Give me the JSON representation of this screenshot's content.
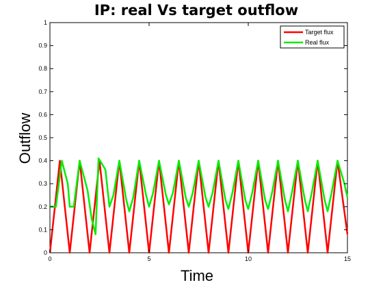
{
  "chart_data": {
    "type": "line",
    "title": "IP: real Vs target outflow",
    "xlabel": "Time",
    "ylabel": "Outflow",
    "xlim": [
      0,
      15
    ],
    "ylim": [
      0,
      1
    ],
    "xticks": [
      0,
      5,
      10,
      15
    ],
    "yticks": [
      0,
      0.1,
      0.2,
      0.3,
      0.4,
      0.5,
      0.6,
      0.7,
      0.8,
      0.9,
      1
    ],
    "grid": false,
    "legend_position": "top-right",
    "series": [
      {
        "name": "Target flux",
        "color": "#ff0000",
        "x": [
          0,
          0.5,
          1.0,
          1.5,
          2.0,
          2.5,
          3.0,
          3.5,
          4.0,
          4.5,
          5.0,
          5.5,
          6.0,
          6.5,
          7.0,
          7.5,
          8.0,
          8.5,
          9.0,
          9.5,
          10.0,
          10.5,
          11.0,
          11.5,
          12.0,
          12.5,
          13.0,
          13.5,
          14.0,
          14.5,
          15.0
        ],
        "values": [
          0,
          0.4,
          0,
          0.4,
          0,
          0.4,
          0,
          0.4,
          0,
          0.4,
          0,
          0.4,
          0,
          0.4,
          0,
          0.4,
          0,
          0.4,
          0,
          0.4,
          0,
          0.4,
          0,
          0.4,
          0,
          0.4,
          0,
          0.4,
          0,
          0.4,
          0.08
        ]
      },
      {
        "name": "Real flux",
        "color": "#00ee00",
        "x": [
          0,
          0.3,
          0.6,
          0.9,
          1.0,
          1.2,
          1.5,
          1.9,
          2.1,
          2.3,
          2.45,
          2.6,
          2.8,
          3.0,
          3.2,
          3.5,
          3.85,
          4.0,
          4.2,
          4.5,
          4.85,
          5.0,
          5.2,
          5.5,
          5.85,
          6.0,
          6.2,
          6.5,
          6.85,
          7.0,
          7.2,
          7.5,
          7.85,
          8.0,
          8.2,
          8.5,
          8.85,
          9.0,
          9.2,
          9.5,
          9.85,
          10.0,
          10.2,
          10.5,
          10.85,
          11.0,
          11.2,
          11.5,
          11.85,
          12.0,
          12.2,
          12.5,
          12.85,
          13.0,
          13.2,
          13.5,
          13.85,
          14.0,
          14.2,
          14.5,
          14.85,
          15.0
        ],
        "values": [
          0.2,
          0.2,
          0.4,
          0.3,
          0.2,
          0.2,
          0.4,
          0.27,
          0.15,
          0.08,
          0.41,
          0.39,
          0.36,
          0.2,
          0.25,
          0.4,
          0.23,
          0.18,
          0.24,
          0.4,
          0.25,
          0.2,
          0.26,
          0.4,
          0.25,
          0.21,
          0.26,
          0.4,
          0.24,
          0.2,
          0.26,
          0.4,
          0.24,
          0.2,
          0.26,
          0.4,
          0.23,
          0.19,
          0.26,
          0.4,
          0.23,
          0.19,
          0.26,
          0.4,
          0.23,
          0.19,
          0.26,
          0.4,
          0.23,
          0.18,
          0.26,
          0.4,
          0.23,
          0.18,
          0.26,
          0.4,
          0.23,
          0.18,
          0.26,
          0.4,
          0.3,
          0.24
        ]
      }
    ]
  }
}
